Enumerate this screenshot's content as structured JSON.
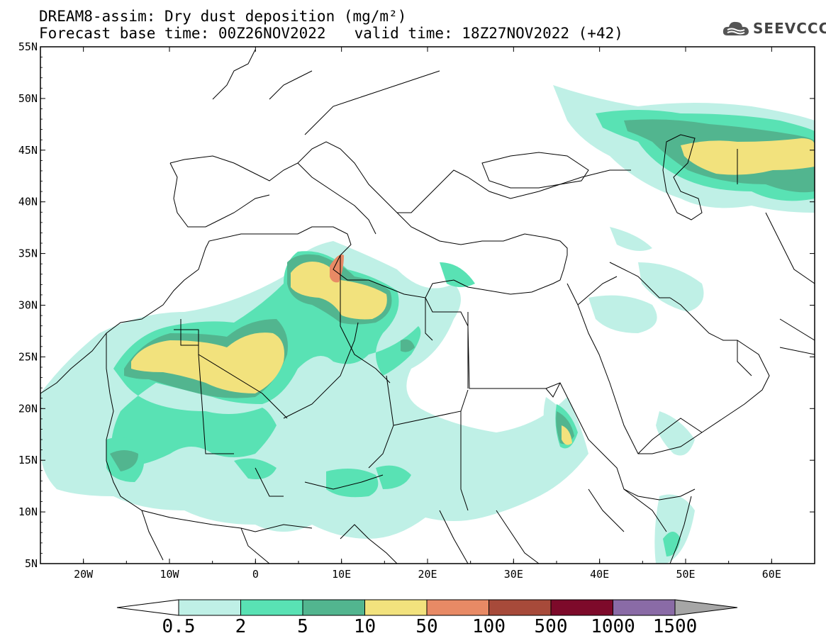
{
  "header": {
    "title_line": "DREAM8-assim: Dry dust deposition (mg/m²)",
    "base_time": "Forecast base time: 00Z26NOV2022",
    "valid_time": "valid time: 18Z27NOV2022 (+42)"
  },
  "logo": {
    "text": "SEEVCCC",
    "icon": "cloud-icon"
  },
  "map": {
    "lon_range": [
      -25,
      65
    ],
    "lat_range": [
      5,
      55
    ],
    "lat_labels": [
      "55N",
      "50N",
      "45N",
      "40N",
      "35N",
      "30N",
      "25N",
      "20N",
      "15N",
      "10N",
      "5N"
    ],
    "lon_labels": [
      "20W",
      "10W",
      "0",
      "10E",
      "20E",
      "30E",
      "40E",
      "50E",
      "60E"
    ],
    "colors": {
      "c0_5": "#bff0e6",
      "c2": "#59e2b4",
      "c5": "#52b58f",
      "c10": "#f2e27d",
      "c50": "#e88a65",
      "c100": "#a74a3a",
      "c500": "#7d0a2a",
      "c1000": "#8a6ba6",
      "c1500": "#a6a6a6"
    }
  },
  "colorbar": {
    "labels": [
      "0.5",
      "2",
      "5",
      "10",
      "50",
      "100",
      "500",
      "1000",
      "1500"
    ],
    "colors": [
      "#bff0e6",
      "#59e2b4",
      "#52b58f",
      "#f2e27d",
      "#e88a65",
      "#a74a3a",
      "#7d0a2a",
      "#8a6ba6"
    ],
    "over_color": "#a6a6a6",
    "under_color": "#ffffff"
  }
}
